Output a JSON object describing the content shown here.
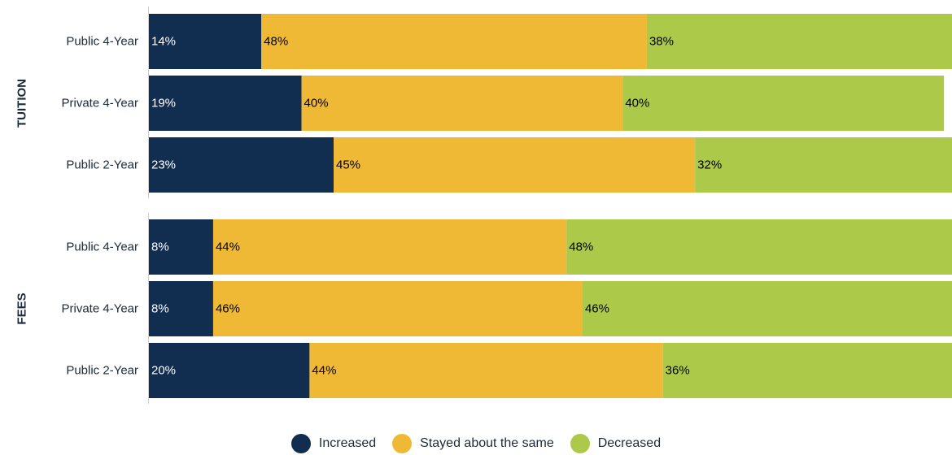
{
  "chart_data": {
    "type": "bar",
    "orientation": "horizontal",
    "stacked": true,
    "percent": true,
    "groups": [
      {
        "label": "TUITION",
        "categories": [
          "Public 4-Year",
          "Private 4-Year",
          "Public 2-Year"
        ],
        "series": [
          {
            "name": "Increased",
            "values": [
              14,
              19,
              23
            ]
          },
          {
            "name": "Stayed about the same",
            "values": [
              48,
              40,
              45
            ]
          },
          {
            "name": "Decreased",
            "values": [
              38,
              40,
              32
            ]
          }
        ]
      },
      {
        "label": "FEES",
        "categories": [
          "Public 4-Year",
          "Private 4-Year",
          "Public 2-Year"
        ],
        "series": [
          {
            "name": "Increased",
            "values": [
              8,
              8,
              20
            ]
          },
          {
            "name": "Stayed about the same",
            "values": [
              44,
              46,
              44
            ]
          },
          {
            "name": "Decreased",
            "values": [
              48,
              46,
              36
            ]
          }
        ]
      }
    ],
    "xlim": [
      0,
      100
    ],
    "grid": false,
    "legend_position": "bottom",
    "colors": {
      "Increased": "#112e51",
      "Stayed about the same": "#f0b935",
      "Decreased": "#acc94a"
    },
    "label_colors": {
      "Increased": "#ffffff",
      "Stayed about the same": "#000000",
      "Decreased": "#000000"
    }
  },
  "legend": [
    {
      "label": "Increased",
      "color": "#112e51"
    },
    {
      "label": "Stayed about the same",
      "color": "#f0b935"
    },
    {
      "label": "Decreased",
      "color": "#acc94a"
    }
  ]
}
